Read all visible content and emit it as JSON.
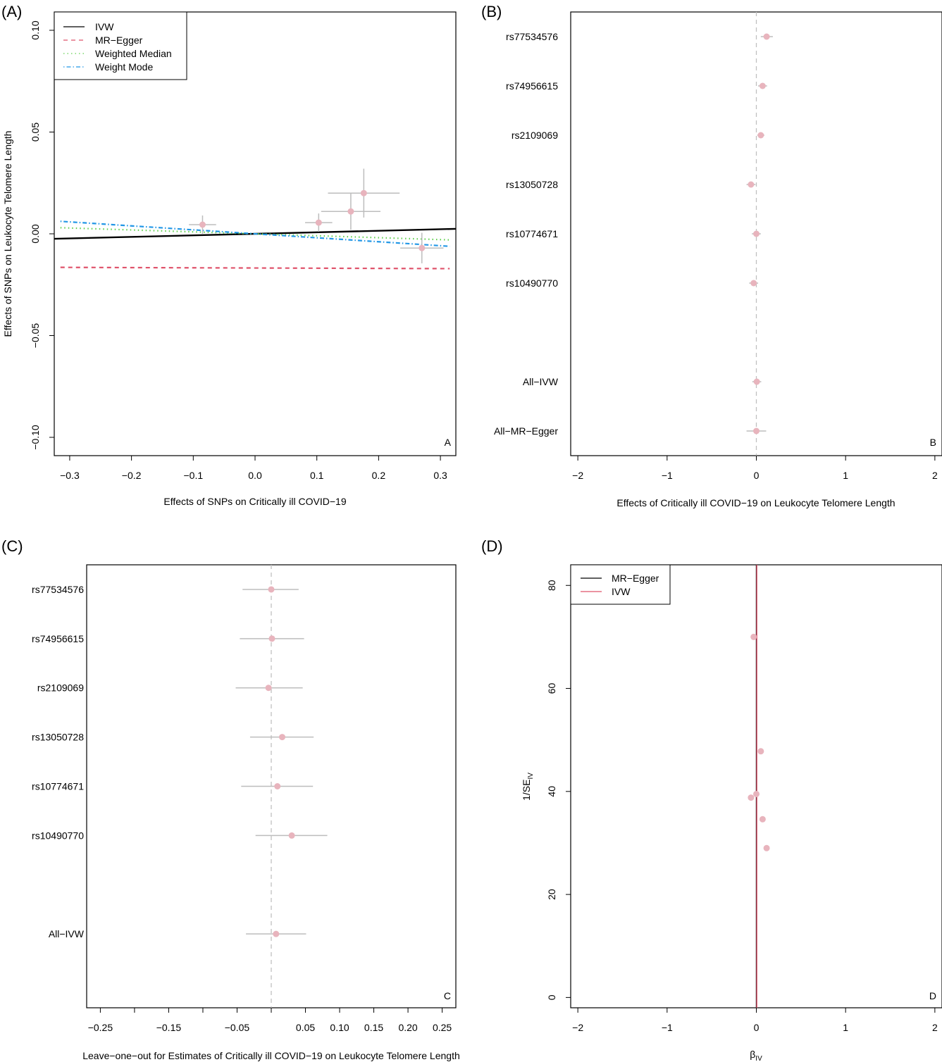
{
  "chart_data": [
    {
      "id": "A",
      "type": "scatter",
      "panel_label": "(A)",
      "corner_label": "A",
      "xlabel": "Effects of SNPs on Critically ill COVID−19",
      "ylabel": "Effects of SNPs on Leukocyte Telomere Length",
      "xlim": [
        -0.325,
        0.325
      ],
      "ylim": [
        -0.109,
        0.109
      ],
      "xticks": [
        {
          "v": -0.3,
          "label": "−0.3"
        },
        {
          "v": -0.2,
          "label": "−0.2"
        },
        {
          "v": -0.1,
          "label": "−0.1"
        },
        {
          "v": 0.0,
          "label": "0.0"
        },
        {
          "v": 0.1,
          "label": "0.1"
        },
        {
          "v": 0.2,
          "label": "0.2"
        },
        {
          "v": 0.3,
          "label": "0.3"
        }
      ],
      "yticks": [
        {
          "v": -0.1,
          "label": "−0.10"
        },
        {
          "v": -0.05,
          "label": "−0.05"
        },
        {
          "v": 0.0,
          "label": "0.00"
        },
        {
          "v": 0.05,
          "label": "0.05"
        },
        {
          "v": 0.1,
          "label": "0.10"
        }
      ],
      "legend_position": "top-left",
      "legend": [
        {
          "label": "IVW",
          "color": "#000000",
          "dash": "none"
        },
        {
          "label": "MR−Egger",
          "color": "#df536b",
          "dash": "6,5"
        },
        {
          "label": "Weighted Median",
          "color": "#61d04f",
          "dash": "1.5,4"
        },
        {
          "label": "Weight Mode",
          "color": "#2297e6",
          "dash": "1.5,3,6,3"
        }
      ],
      "points": [
        {
          "x": -0.085,
          "y": 0.0045,
          "xerr": 0.022,
          "yerr": 0.0045
        },
        {
          "x": 0.103,
          "y": 0.0055,
          "xerr": 0.022,
          "yerr": 0.0045
        },
        {
          "x": 0.155,
          "y": 0.011,
          "xerr": 0.048,
          "yerr": 0.009
        },
        {
          "x": 0.176,
          "y": 0.02,
          "xerr": 0.058,
          "yerr": 0.012
        },
        {
          "x": 0.27,
          "y": -0.007,
          "xerr": 0.035,
          "yerr": 0.0075
        }
      ],
      "lines": [
        {
          "name": "IVW",
          "intercept": 0,
          "slope": 0.0075
        },
        {
          "name": "MR−Egger",
          "intercept": -0.0168,
          "slope": -0.001
        },
        {
          "name": "Weighted Median",
          "intercept": 0,
          "slope": -0.0095
        },
        {
          "name": "Weight Mode",
          "intercept": 0,
          "slope": -0.0195
        }
      ],
      "point_color": "#e8b4bd",
      "errbar_color": "#bdbdbd"
    },
    {
      "id": "B",
      "type": "forest",
      "panel_label": "(B)",
      "corner_label": "B",
      "xlabel": "Effects of Critically ill COVID−19 on Leukocyte Telomere Length",
      "xlim": [
        -2.08,
        2.08
      ],
      "ylim": [
        0.5,
        9.5
      ],
      "xticks": [
        {
          "v": -2,
          "label": "−2"
        },
        {
          "v": -1,
          "label": "−1"
        },
        {
          "v": 0,
          "label": "0"
        },
        {
          "v": 1,
          "label": "1"
        },
        {
          "v": 2,
          "label": "2"
        }
      ],
      "rows": [
        {
          "label": "rs77534576",
          "pos": 9,
          "est": 0.115,
          "lo": 0.05,
          "hi": 0.185
        },
        {
          "label": "rs74956615",
          "pos": 8,
          "est": 0.07,
          "lo": 0.02,
          "hi": 0.12
        },
        {
          "label": "rs2109069",
          "pos": 7,
          "est": 0.05,
          "lo": 0.01,
          "hi": 0.09
        },
        {
          "label": "rs13050728",
          "pos": 6,
          "est": -0.06,
          "lo": -0.11,
          "hi": -0.01
        },
        {
          "label": "rs10774671",
          "pos": 5,
          "est": 0.0,
          "lo": -0.05,
          "hi": 0.05
        },
        {
          "label": "rs10490770",
          "pos": 4,
          "est": -0.03,
          "lo": -0.08,
          "hi": 0.02
        },
        {
          "label": "All−IVW",
          "pos": 2,
          "est": 0.005,
          "lo": -0.045,
          "hi": 0.055
        },
        {
          "label": "All−MR−Egger",
          "pos": 1,
          "est": 0.0,
          "lo": -0.11,
          "hi": 0.11
        }
      ],
      "refline": 0,
      "point_color": "#e8b4bd",
      "errbar_color": "#bdbdbd"
    },
    {
      "id": "C",
      "type": "forest",
      "panel_label": "(C)",
      "corner_label": "C",
      "xlabel": "Leave−one−out for Estimates of Critically ill COVID−19 on Leukocyte Telomere Length",
      "xlim": [
        -0.27,
        0.27
      ],
      "ylim": [
        -0.5,
        8.5
      ],
      "xticks": [
        {
          "v": -0.25,
          "label": "−0.25"
        },
        {
          "v": -0.2,
          "label": ""
        },
        {
          "v": -0.15,
          "label": "−0.15"
        },
        {
          "v": -0.1,
          "label": ""
        },
        {
          "v": -0.05,
          "label": "−0.05"
        },
        {
          "v": 0.0,
          "label": ""
        },
        {
          "v": 0.05,
          "label": "0.05"
        },
        {
          "v": 0.1,
          "label": "0.10"
        },
        {
          "v": 0.15,
          "label": "0.15"
        },
        {
          "v": 0.2,
          "label": "0.20"
        },
        {
          "v": 0.25,
          "label": "0.25"
        }
      ],
      "rows": [
        {
          "label": "rs77534576",
          "pos": 8,
          "est": 0.0,
          "lo": -0.042,
          "hi": 0.04
        },
        {
          "label": "rs74956615",
          "pos": 7,
          "est": 0.001,
          "lo": -0.046,
          "hi": 0.048
        },
        {
          "label": "rs2109069",
          "pos": 6,
          "est": -0.004,
          "lo": -0.052,
          "hi": 0.046
        },
        {
          "label": "rs13050728",
          "pos": 5,
          "est": 0.016,
          "lo": -0.031,
          "hi": 0.062
        },
        {
          "label": "rs10774671",
          "pos": 4,
          "est": 0.009,
          "lo": -0.044,
          "hi": 0.061
        },
        {
          "label": "rs10490770",
          "pos": 3,
          "est": 0.03,
          "lo": -0.023,
          "hi": 0.082
        },
        {
          "label": "All−IVW",
          "pos": 1,
          "est": 0.007,
          "lo": -0.037,
          "hi": 0.051
        }
      ],
      "refline": 0,
      "point_color": "#e8b4bd",
      "errbar_color": "#bdbdbd"
    },
    {
      "id": "D",
      "type": "scatter",
      "panel_label": "(D)",
      "corner_label": "D",
      "xlabel": "β",
      "xlabel_sub": "IV",
      "ylabel": "1/SE",
      "ylabel_sub": "IV",
      "xlim": [
        -2.08,
        2.08
      ],
      "ylim": [
        -2,
        84
      ],
      "xticks": [
        {
          "v": -2,
          "label": "−2"
        },
        {
          "v": -1,
          "label": "−1"
        },
        {
          "v": 0,
          "label": "0"
        },
        {
          "v": 1,
          "label": "1"
        },
        {
          "v": 2,
          "label": "2"
        }
      ],
      "yticks": [
        {
          "v": 0,
          "label": "0"
        },
        {
          "v": 20,
          "label": "20"
        },
        {
          "v": 40,
          "label": "40"
        },
        {
          "v": 60,
          "label": "60"
        },
        {
          "v": 80,
          "label": "80"
        }
      ],
      "legend_position": "top-left",
      "legend": [
        {
          "label": "MR−Egger",
          "color": "#000000"
        },
        {
          "label": "IVW",
          "color": "#df536b"
        }
      ],
      "points": [
        {
          "x": -0.03,
          "y": 70.0
        },
        {
          "x": 0.05,
          "y": 47.8
        },
        {
          "x": 0.0,
          "y": 39.5
        },
        {
          "x": -0.06,
          "y": 38.8
        },
        {
          "x": 0.07,
          "y": 34.6
        },
        {
          "x": 0.115,
          "y": 29.0
        }
      ],
      "vlines": [
        {
          "name": "MR−Egger",
          "x": 0.0,
          "color": "#000000"
        },
        {
          "name": "IVW",
          "x": 0.005,
          "color": "#df536b"
        }
      ],
      "point_color": "#e8b4bd"
    }
  ]
}
